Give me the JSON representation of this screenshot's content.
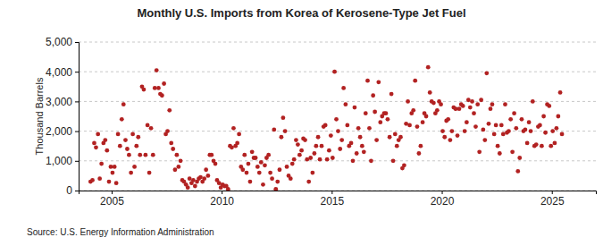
{
  "chart_data": {
    "type": "scatter",
    "title": "Monthly U.S. Imports from Korea of Kerosene-Type Jet Fuel",
    "y_label": "Thousand Barrels",
    "source": "Source: U.S. Energy Information Administration",
    "color": "#b22222",
    "marker": "circle",
    "grid": true,
    "xlim": [
      2003.5,
      2027
    ],
    "xticks": [
      2005,
      2010,
      2015,
      2020,
      2025
    ],
    "ylim": [
      0,
      5000
    ],
    "yticks": [
      0,
      {
        "value": 1000,
        "label": "1,000"
      },
      {
        "value": 2000,
        "label": "2,000"
      },
      {
        "value": 3000,
        "label": "3,000"
      },
      {
        "value": 4000,
        "label": "4,000"
      },
      {
        "value": 5000,
        "label": "5,000"
      }
    ],
    "x": [
      2004.04,
      2004.13,
      2004.21,
      2004.29,
      2004.38,
      2004.46,
      2004.54,
      2004.63,
      2004.71,
      2004.79,
      2004.88,
      2004.96,
      2005.04,
      2005.13,
      2005.21,
      2005.29,
      2005.38,
      2005.46,
      2005.54,
      2005.63,
      2005.71,
      2005.79,
      2005.88,
      2005.96,
      2006.04,
      2006.13,
      2006.21,
      2006.29,
      2006.38,
      2006.46,
      2006.54,
      2006.63,
      2006.71,
      2006.79,
      2006.88,
      2006.96,
      2007.04,
      2007.13,
      2007.21,
      2007.29,
      2007.38,
      2007.46,
      2007.54,
      2007.63,
      2007.71,
      2007.79,
      2007.88,
      2007.96,
      2008.04,
      2008.13,
      2008.21,
      2008.29,
      2008.38,
      2008.46,
      2008.54,
      2008.63,
      2008.71,
      2008.79,
      2008.88,
      2008.96,
      2009.04,
      2009.13,
      2009.21,
      2009.29,
      2009.38,
      2009.46,
      2009.54,
      2009.63,
      2009.71,
      2009.79,
      2009.88,
      2009.96,
      2010.04,
      2010.13,
      2010.21,
      2010.29,
      2010.38,
      2010.46,
      2010.54,
      2010.63,
      2010.71,
      2010.79,
      2010.88,
      2010.96,
      2011.04,
      2011.13,
      2011.21,
      2011.29,
      2011.38,
      2011.46,
      2011.54,
      2011.63,
      2011.71,
      2011.79,
      2011.88,
      2011.96,
      2012.04,
      2012.13,
      2012.21,
      2012.29,
      2012.38,
      2012.46,
      2012.54,
      2012.63,
      2012.71,
      2012.79,
      2012.88,
      2012.96,
      2013.04,
      2013.13,
      2013.21,
      2013.29,
      2013.38,
      2013.46,
      2013.54,
      2013.63,
      2013.71,
      2013.79,
      2013.88,
      2013.96,
      2014.04,
      2014.13,
      2014.21,
      2014.29,
      2014.38,
      2014.46,
      2014.54,
      2014.63,
      2014.71,
      2014.79,
      2014.88,
      2014.96,
      2015.04,
      2015.13,
      2015.21,
      2015.29,
      2015.38,
      2015.46,
      2015.54,
      2015.63,
      2015.71,
      2015.79,
      2015.88,
      2015.96,
      2016.04,
      2016.13,
      2016.21,
      2016.29,
      2016.38,
      2016.46,
      2016.54,
      2016.63,
      2016.71,
      2016.79,
      2016.88,
      2016.96,
      2017.04,
      2017.13,
      2017.21,
      2017.29,
      2017.38,
      2017.46,
      2017.54,
      2017.63,
      2017.71,
      2017.79,
      2017.88,
      2017.96,
      2018.04,
      2018.13,
      2018.21,
      2018.29,
      2018.38,
      2018.46,
      2018.54,
      2018.63,
      2018.71,
      2018.79,
      2018.88,
      2018.96,
      2019.04,
      2019.13,
      2019.21,
      2019.29,
      2019.38,
      2019.46,
      2019.54,
      2019.63,
      2019.71,
      2019.79,
      2019.88,
      2019.96,
      2020.04,
      2020.13,
      2020.21,
      2020.29,
      2020.38,
      2020.46,
      2020.54,
      2020.63,
      2020.71,
      2020.79,
      2020.88,
      2020.96,
      2021.04,
      2021.13,
      2021.21,
      2021.29,
      2021.38,
      2021.46,
      2021.54,
      2021.63,
      2021.71,
      2021.79,
      2021.88,
      2021.96,
      2022.04,
      2022.13,
      2022.21,
      2022.29,
      2022.38,
      2022.46,
      2022.54,
      2022.63,
      2022.71,
      2022.79,
      2022.88,
      2022.96,
      2023.04,
      2023.13,
      2023.21,
      2023.29,
      2023.38,
      2023.46,
      2023.54,
      2023.63,
      2023.71,
      2023.79,
      2023.88,
      2023.96,
      2024.04,
      2024.13,
      2024.21,
      2024.29,
      2024.38,
      2024.46,
      2024.54,
      2024.63,
      2024.71,
      2024.79,
      2024.88,
      2024.96,
      2025.04,
      2025.13,
      2025.21,
      2025.29,
      2025.38,
      2025.46
    ],
    "values": [
      300,
      350,
      1600,
      1450,
      1900,
      400,
      900,
      1600,
      1700,
      1350,
      300,
      800,
      600,
      800,
      250,
      1900,
      1500,
      2400,
      2900,
      1700,
      1400,
      1200,
      600,
      1900,
      800,
      1500,
      1800,
      1200,
      3500,
      3400,
      1200,
      2200,
      600,
      2100,
      1200,
      3450,
      4050,
      3450,
      3250,
      3200,
      3600,
      1900,
      2000,
      2700,
      1600,
      1400,
      700,
      1200,
      800,
      1000,
      350,
      300,
      200,
      100,
      400,
      250,
      350,
      150,
      300,
      400,
      450,
      300,
      400,
      700,
      500,
      1200,
      1200,
      1000,
      900,
      350,
      250,
      100,
      200,
      150,
      150,
      50,
      1500,
      1450,
      2100,
      1500,
      1600,
      1900,
      800,
      700,
      1200,
      600,
      900,
      300,
      1300,
      1100,
      1100,
      800,
      600,
      950,
      200,
      850,
      1100,
      1200,
      600,
      400,
      2050,
      50,
      300,
      700,
      1800,
      2450,
      2000,
      800,
      500,
      400,
      900,
      1050,
      1700,
      1550,
      1200,
      1350,
      1750,
      1700,
      1050,
      300,
      1100,
      600,
      1250,
      1500,
      1800,
      1050,
      1500,
      2150,
      2200,
      1050,
      1350,
      1850,
      1100,
      4000,
      2400,
      2000,
      1400,
      1700,
      3450,
      2900,
      2200,
      1500,
      1600,
      1000,
      2800,
      1250,
      2100,
      1800,
      1500,
      1300,
      2600,
      3700,
      2100,
      1000,
      3200,
      2650,
      1700,
      3650,
      2300,
      2500,
      2600,
      2600,
      2400,
      1800,
      3250,
      1000,
      1900,
      1500,
      1700,
      1800,
      750,
      850,
      2250,
      3000,
      2200,
      2600,
      2700,
      3700,
      2150,
      1250,
      1500,
      2300,
      2600,
      2500,
      4150,
      3300,
      3000,
      2950,
      2600,
      2700,
      3000,
      2900,
      2000,
      1800,
      2350,
      2400,
      1700,
      2000,
      2800,
      2750,
      1850,
      2750,
      2900,
      2850,
      2000,
      2300,
      3050,
      2800,
      3000,
      2600,
      2150,
      2900,
      1300,
      3050,
      2050,
      1700,
      3950,
      2250,
      2750,
      2900,
      1900,
      2200,
      1500,
      1250,
      2200,
      1900,
      2900,
      1950,
      2000,
      2400,
      1300,
      2600,
      2100,
      650,
      1100,
      2400,
      2000,
      2050,
      1600,
      2300,
      2000,
      3000,
      1500,
      1550,
      2150,
      2200,
      1500,
      2500,
      1950,
      2900,
      2850,
      1500,
      2000,
      1600,
      2100,
      2500,
      3300,
      1900
    ]
  }
}
